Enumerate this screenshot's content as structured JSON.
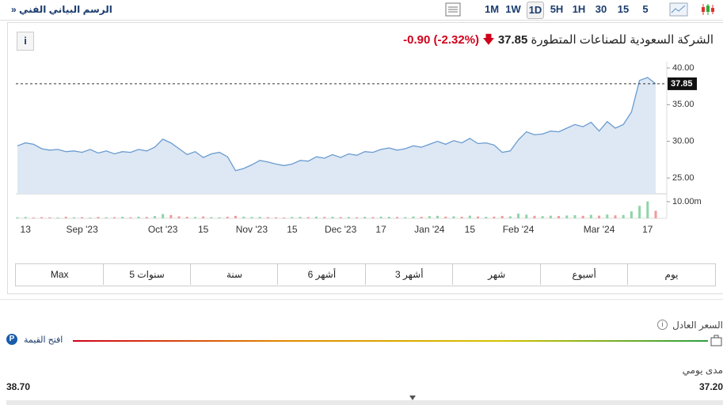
{
  "toolbar": {
    "link": "الرسم البياني الفني",
    "arrow": "»",
    "timeframes": [
      "1M",
      "1W",
      "1D",
      "5H",
      "1H",
      "30",
      "15",
      "5"
    ],
    "active": "1D"
  },
  "header": {
    "name": "الشركة السعودية للصناعات المتطورة",
    "price": 37.85,
    "change": "-0.90",
    "change_percent": "(-2.32%)"
  },
  "chart_data": {
    "type": "line",
    "color": "#6a9bd1",
    "fill": "#dde8f4",
    "categories": [
      null,
      "13",
      null,
      null,
      null,
      null,
      null,
      null,
      "Sep '23",
      null,
      null,
      null,
      null,
      null,
      null,
      null,
      null,
      null,
      "Oct '23",
      null,
      null,
      null,
      null,
      "15",
      null,
      null,
      null,
      null,
      null,
      "Nov '23",
      null,
      null,
      null,
      null,
      "15",
      null,
      null,
      null,
      null,
      null,
      "Dec '23",
      null,
      null,
      null,
      null,
      "17",
      null,
      null,
      null,
      null,
      null,
      "Jan '24",
      null,
      null,
      null,
      null,
      "15",
      null,
      null,
      null,
      null,
      null,
      "Feb '24",
      null,
      null,
      null,
      null,
      null,
      null,
      null,
      null,
      null,
      "Mar '24",
      null,
      null,
      null,
      null,
      null,
      "17",
      null
    ],
    "values": [
      29.4,
      29.8,
      29.6,
      29.0,
      28.8,
      28.9,
      28.6,
      28.7,
      28.5,
      28.9,
      28.4,
      28.7,
      28.3,
      28.6,
      28.5,
      28.9,
      28.7,
      29.2,
      30.3,
      29.8,
      29.0,
      28.2,
      28.6,
      27.8,
      28.3,
      28.5,
      27.9,
      26.0,
      26.3,
      26.8,
      27.4,
      27.2,
      26.9,
      26.7,
      26.9,
      27.4,
      27.3,
      27.9,
      27.7,
      28.2,
      27.8,
      28.3,
      28.1,
      28.6,
      28.5,
      28.9,
      29.1,
      28.8,
      29.0,
      29.4,
      29.2,
      29.6,
      30.0,
      29.6,
      30.1,
      29.8,
      30.4,
      29.7,
      29.8,
      29.5,
      28.5,
      28.7,
      30.2,
      31.3,
      30.9,
      31.0,
      31.4,
      31.3,
      31.8,
      32.3,
      32.0,
      32.6,
      31.4,
      32.7,
      31.8,
      32.3,
      34.0,
      38.3,
      38.7,
      37.85
    ],
    "volumes": [
      0.6,
      0.8,
      0.5,
      0.7,
      0.6,
      0.5,
      0.9,
      0.6,
      0.7,
      0.5,
      0.8,
      0.6,
      0.7,
      0.9,
      0.6,
      1.0,
      0.8,
      1.4,
      2.6,
      2.0,
      1.2,
      0.9,
      0.8,
      1.1,
      0.7,
      0.6,
      0.9,
      1.5,
      1.0,
      0.8,
      0.9,
      0.7,
      0.6,
      0.5,
      0.8,
      0.9,
      0.7,
      1.0,
      0.8,
      0.9,
      0.7,
      0.8,
      0.6,
      0.9,
      0.7,
      1.0,
      0.9,
      0.8,
      0.7,
      1.1,
      0.9,
      1.3,
      1.5,
      1.0,
      1.2,
      0.9,
      1.6,
      1.1,
      0.9,
      1.0,
      1.4,
      1.2,
      2.8,
      2.2,
      1.5,
      1.3,
      1.6,
      1.4,
      1.7,
      1.9,
      1.5,
      2.1,
      1.6,
      2.3,
      1.8,
      2.0,
      4.2,
      7.5,
      10.2,
      4.5
    ],
    "up_color": "#8fd4a8",
    "down_color": "#f19a9a",
    "ylim": [
      22.85,
      40.86
    ],
    "yticks": [
      {
        "value": 25,
        "label": "25.00"
      },
      {
        "value": 30,
        "label": "30.00"
      },
      {
        "value": 35,
        "label": "35.00"
      },
      {
        "value": 40,
        "label": "40.00"
      }
    ],
    "volume_lim": [
      0,
      13.3
    ],
    "volume_ticks": [
      {
        "value": 10,
        "label": "10.00m"
      }
    ],
    "price_tag": {
      "value": 37.85,
      "label": "37.85"
    }
  },
  "ranges": [
    "يوم",
    "أسبوع",
    "شهر",
    "3 أشهر",
    "6 أشهر",
    "سنة",
    "5 سنوات",
    "Max"
  ],
  "fair_value": {
    "label": "السعر العادل",
    "unlock": "افتح القيمة"
  },
  "daily_range": {
    "label": "مدى يومي",
    "low": "37.20",
    "high": "38.70"
  }
}
